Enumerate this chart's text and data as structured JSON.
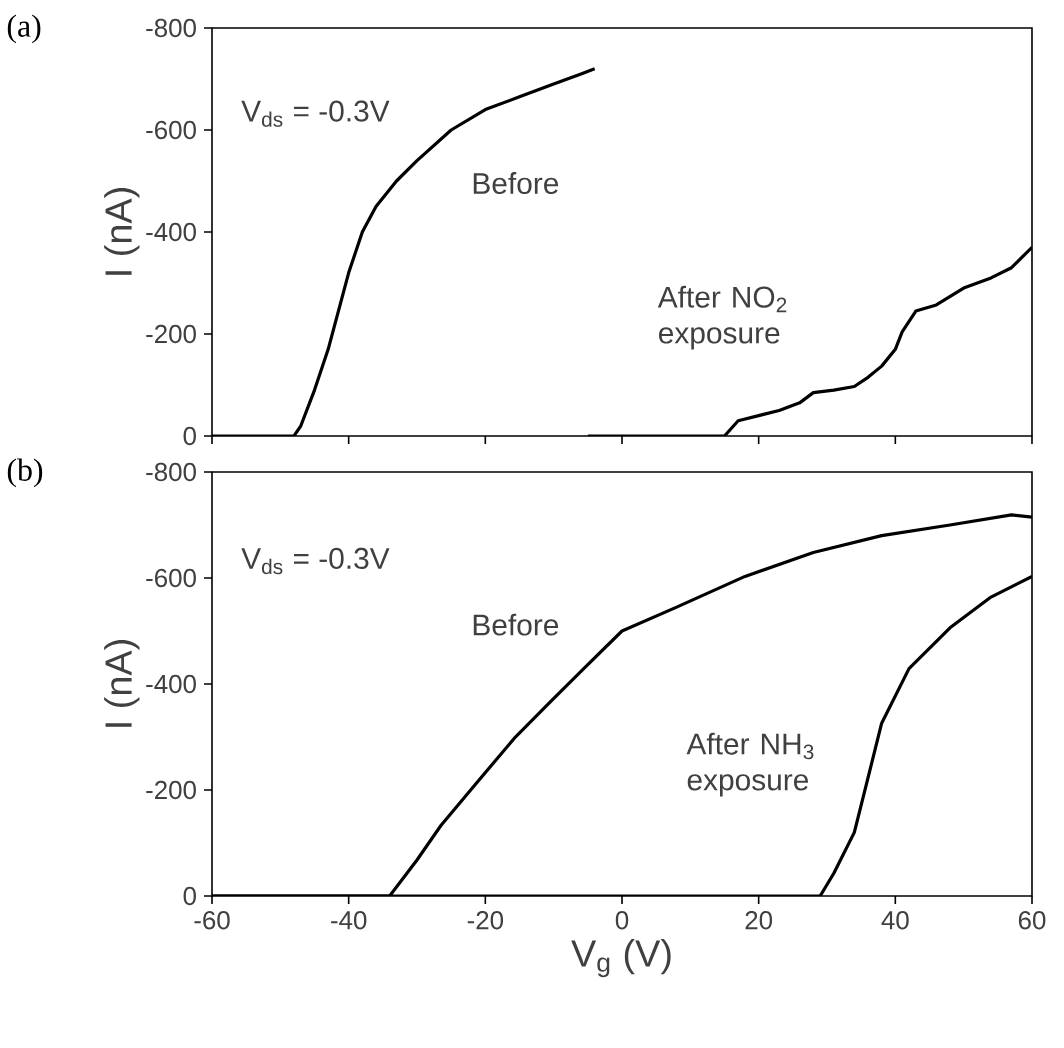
{
  "chart_data": [
    {
      "type": "line",
      "title": "(a)",
      "ylabel": "I (nA)",
      "annotations": [
        "V$_{ds}$ = -0.3V"
      ],
      "xlim": [
        -60,
        60
      ],
      "xticks": [
        -60,
        -40,
        -20,
        0,
        20,
        40,
        60
      ],
      "ylim": [
        0,
        -800
      ],
      "yticks": [
        0,
        -200,
        -400,
        -600,
        -800
      ],
      "tick_labels": "y",
      "legend": false,
      "grid": false,
      "marker": "none",
      "line_style": "solid",
      "series": [
        {
          "name": "Before",
          "color": "#000000",
          "x": [
            -60,
            -48,
            -47,
            -45,
            -43,
            -42,
            -40,
            -38,
            -36,
            -33,
            -30,
            -25,
            -20,
            -15,
            -10,
            -6,
            -4
          ],
          "values": [
            0,
            0,
            -20,
            -90,
            -170,
            -220,
            -320,
            -400,
            -450,
            -500,
            -540,
            -600,
            -640,
            -665,
            -690,
            -710,
            -720
          ]
        },
        {
          "name": "After NO$_{2}$ exposure",
          "color": "#000000",
          "x": [
            -5,
            15,
            17,
            20,
            23,
            26,
            28,
            31,
            34,
            36,
            38,
            40,
            41,
            43,
            46,
            50,
            54,
            57,
            60
          ],
          "values": [
            0,
            0,
            -30,
            -40,
            -50,
            -65,
            -85,
            -90,
            -97,
            -115,
            -137,
            -170,
            -204,
            -245,
            -257,
            -290,
            -310,
            -330,
            -370
          ]
        }
      ]
    },
    {
      "type": "line",
      "title": "(b)",
      "xlabel": "V$_{g}$ (V)",
      "ylabel": "I (nA)",
      "annotations": [
        "V$_{ds}$ = -0.3V"
      ],
      "xlim": [
        -60,
        60
      ],
      "xticks": [
        -60,
        -40,
        -20,
        0,
        20,
        40,
        60
      ],
      "ylim": [
        0,
        -800
      ],
      "yticks": [
        0,
        -200,
        -400,
        -600,
        -800
      ],
      "legend": false,
      "grid": false,
      "marker": "none",
      "line_style": "solid",
      "series": [
        {
          "name": "Before",
          "color": "#000000",
          "x": [
            -60,
            -34,
            -30,
            -26.5,
            -21.5,
            -15.6,
            -10.6,
            -5.6,
            0,
            8,
            18,
            28,
            38,
            48,
            57,
            60
          ],
          "values": [
            0,
            0,
            -68,
            -133,
            -210,
            -300,
            -365,
            -429,
            -500,
            -545,
            -603,
            -648,
            -680,
            -700,
            -719,
            -715
          ]
        },
        {
          "name": "After NH$_{3}$ exposure",
          "color": "#000000",
          "x": [
            -60,
            29,
            31,
            34,
            36,
            38,
            42,
            48,
            54,
            60
          ],
          "values": [
            0,
            0,
            -43,
            -120,
            -223,
            -326,
            -429,
            -506,
            -564,
            -603
          ]
        }
      ]
    }
  ]
}
